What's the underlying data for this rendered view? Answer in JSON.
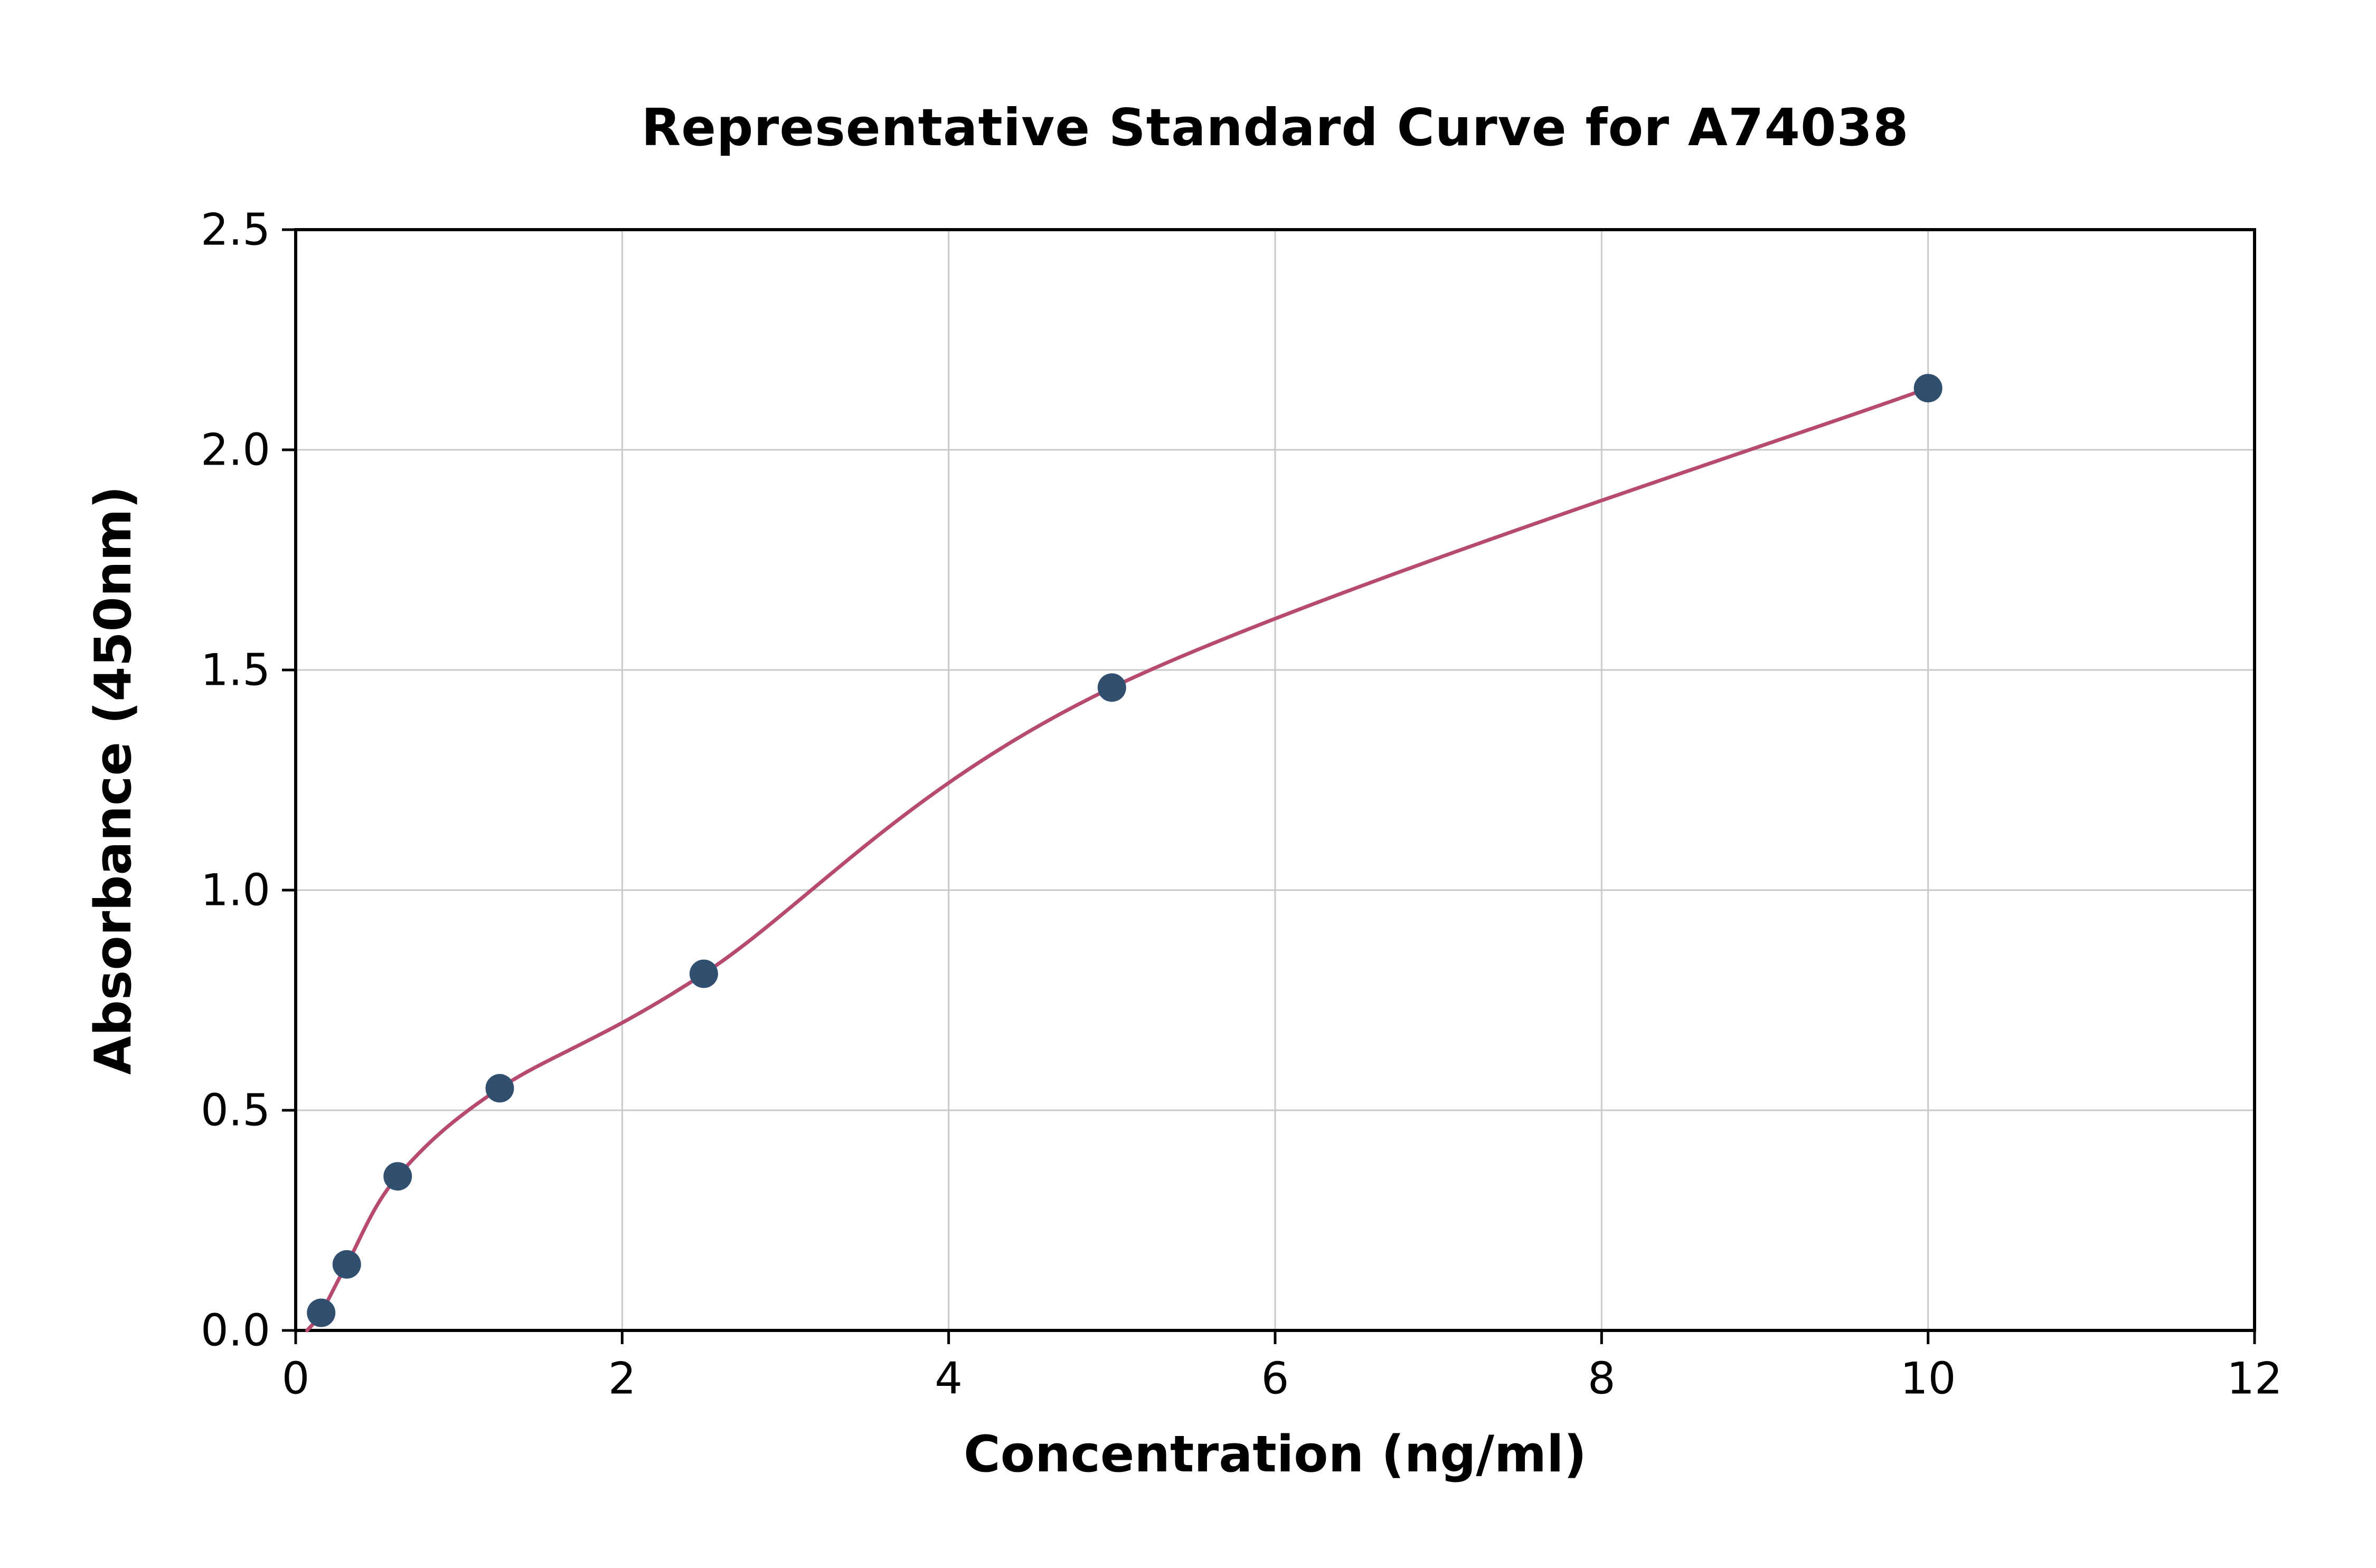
{
  "chart_data": {
    "type": "scatter",
    "title": "Representative Standard Curve for A74038",
    "xlabel": "Concentration (ng/ml)",
    "ylabel": "Absorbance (450nm)",
    "xlim": [
      0,
      12
    ],
    "ylim": [
      0,
      2.5
    ],
    "xticks": [
      0,
      2,
      4,
      6,
      8,
      10,
      12
    ],
    "x_tick_labels": [
      "0",
      "2",
      "4",
      "6",
      "8",
      "10",
      "12"
    ],
    "yticks": [
      0,
      0.5,
      1.0,
      1.5,
      2.0,
      2.5
    ],
    "y_tick_labels": [
      "0.0",
      "0.5",
      "1.0",
      "1.5",
      "2.0",
      "2.5"
    ],
    "grid": true,
    "legend": "none",
    "points": [
      {
        "x": 0.156,
        "y": 0.04
      },
      {
        "x": 0.313,
        "y": 0.15
      },
      {
        "x": 0.625,
        "y": 0.35
      },
      {
        "x": 1.25,
        "y": 0.55
      },
      {
        "x": 2.5,
        "y": 0.81
      },
      {
        "x": 5,
        "y": 1.46
      },
      {
        "x": 10,
        "y": 2.14
      }
    ],
    "curve_start": {
      "x": 0.07,
      "y": 0.0
    },
    "colors": {
      "point": "#31506f",
      "curve": "#b64a70",
      "grid": "#c9c9c9",
      "axis": "#000000"
    }
  }
}
